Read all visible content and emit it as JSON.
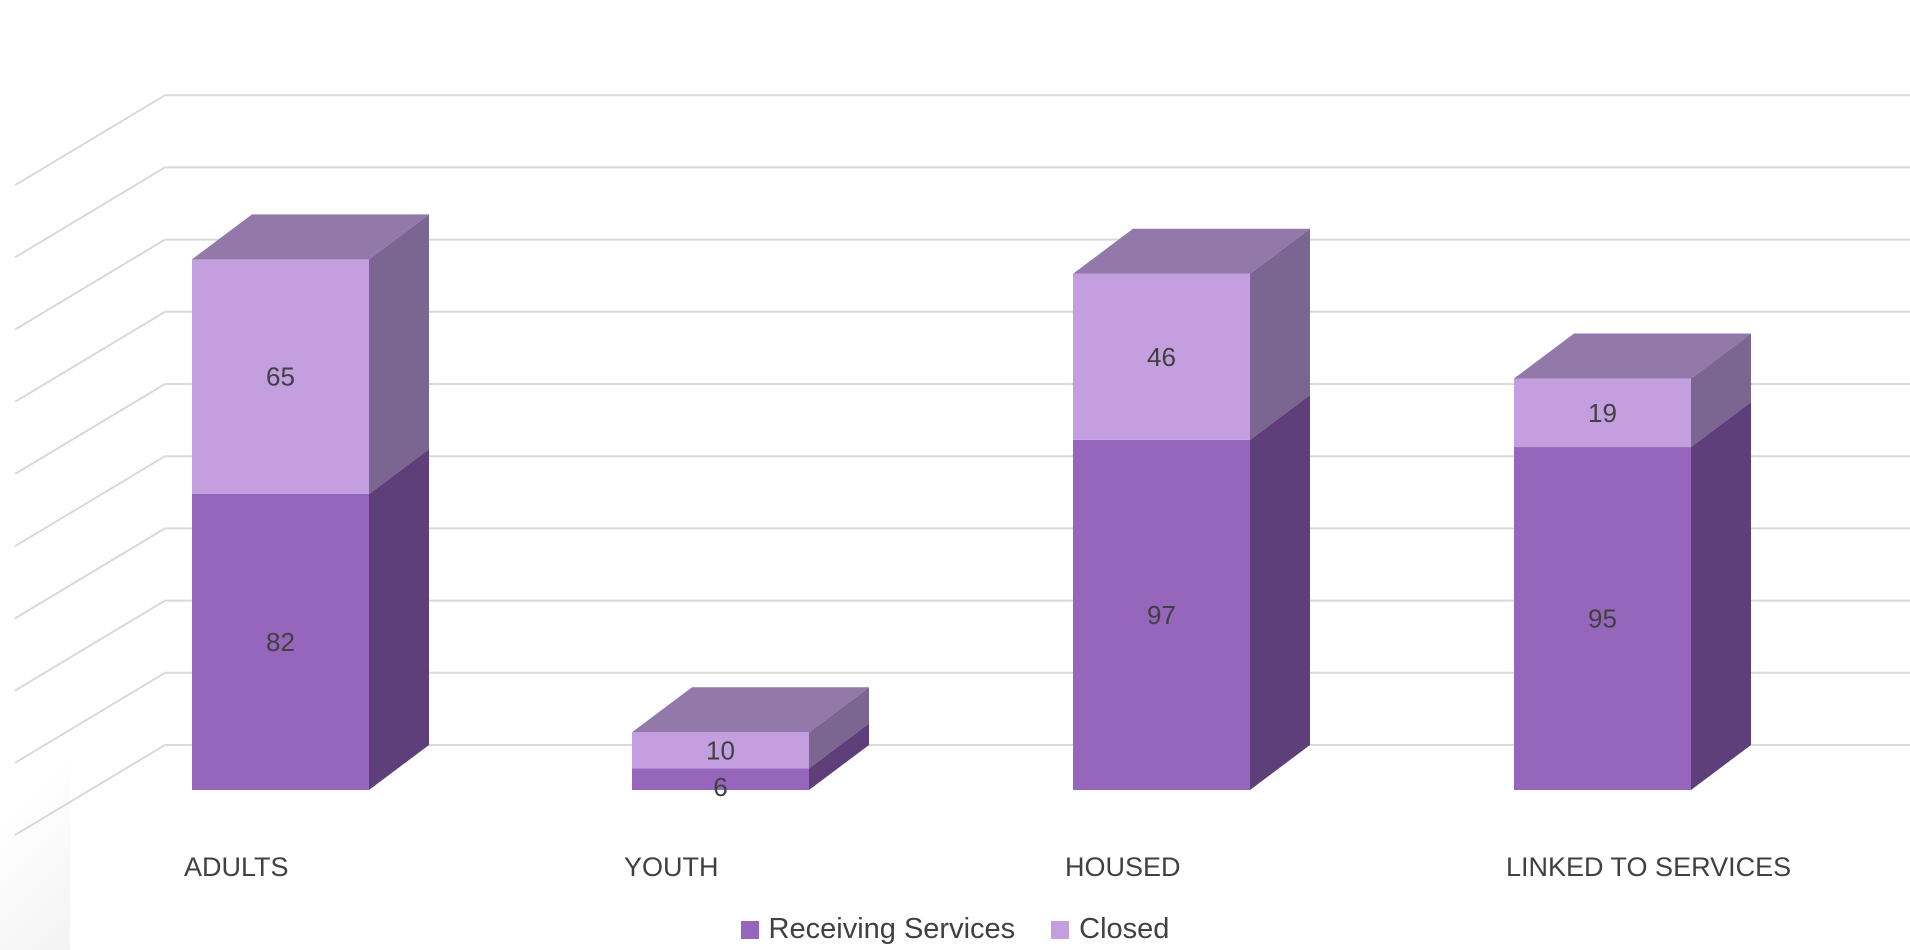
{
  "chart_data": {
    "type": "bar",
    "stacked": true,
    "three_d": true,
    "categories": [
      "ADULTS",
      "YOUTH",
      "HOUSED",
      "LINKED TO SERVICES"
    ],
    "series": [
      {
        "name": "Receiving Services",
        "values": [
          82,
          6,
          97,
          95
        ],
        "color": "#9566BB",
        "side_color": "#5E3F7A",
        "top_color": "#9379AA"
      },
      {
        "name": "Closed",
        "values": [
          65,
          10,
          46,
          19
        ],
        "color": "#C39FE0",
        "side_color": "#7A6690",
        "top_color": "#9379AA"
      }
    ],
    "ylim": [
      0,
      180
    ],
    "grid": true,
    "legend_position": "bottom",
    "gridline_color": "#D9D9D9"
  }
}
